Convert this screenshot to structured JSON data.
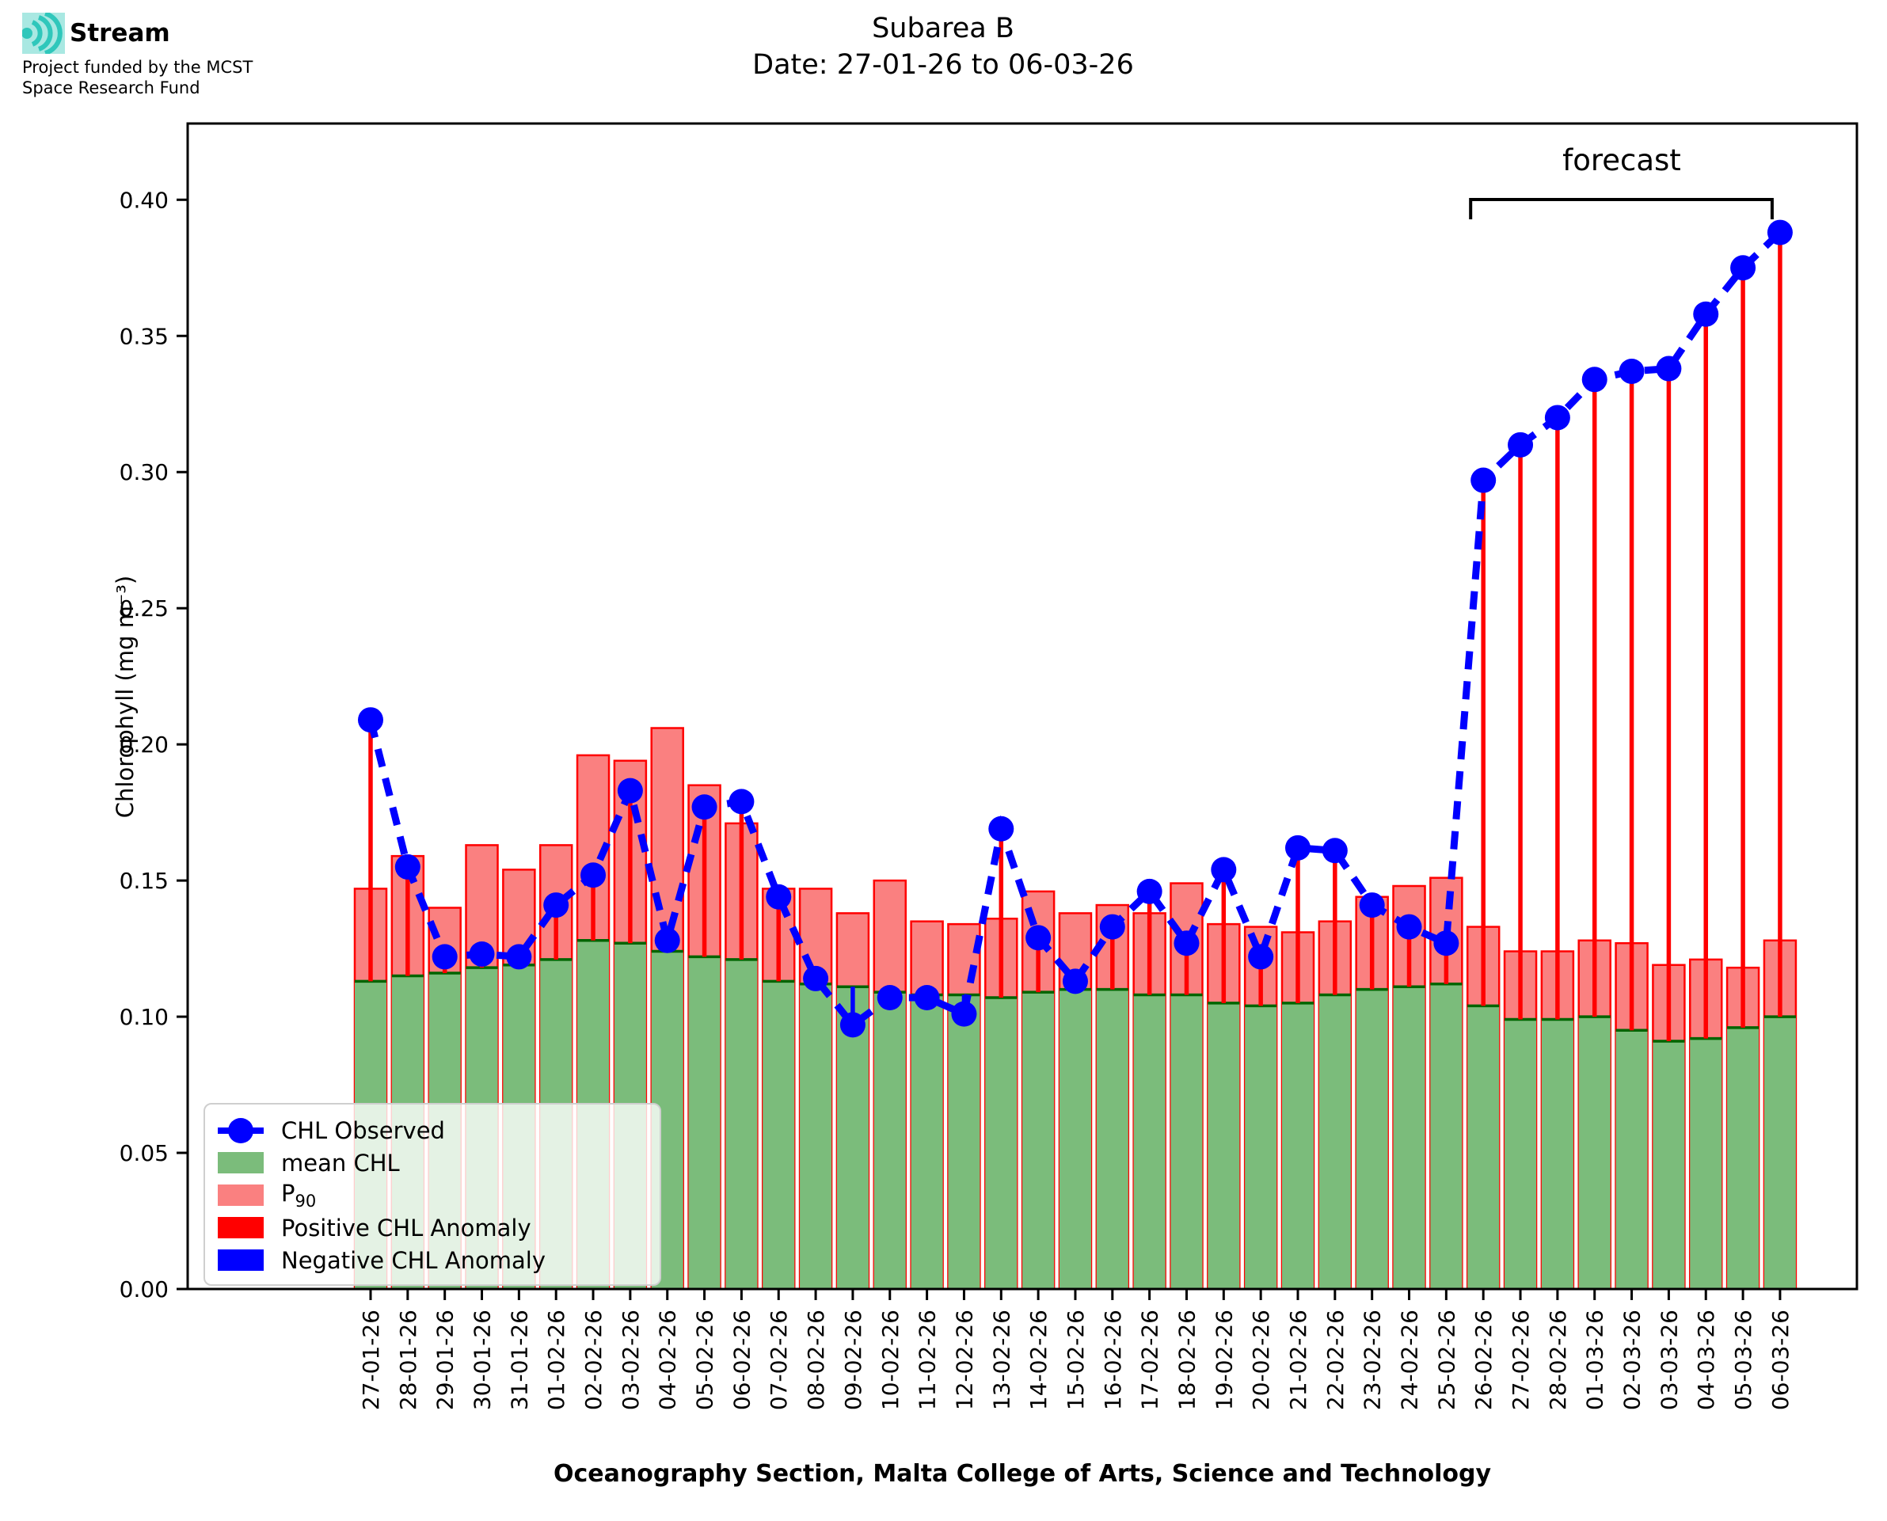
{
  "logo": {
    "name": "Stream",
    "funding_line1": "Project funded by the MCST",
    "funding_line2": "Space Research Fund",
    "icon": "stream-waves-icon",
    "icon_color": "#2fc7bb",
    "icon_bg": "#a9e8e2"
  },
  "title": {
    "line1": "Subarea B",
    "line2": "Date: 27-01-26 to 06-03-26"
  },
  "forecast_label": "forecast",
  "axes": {
    "y_label": "Chlorophyll (mg m⁻³)",
    "x_label": "Oceanography Section, Malta College of Arts, Science and Technology",
    "y_ticks": [
      "0.00",
      "0.05",
      "0.10",
      "0.15",
      "0.20",
      "0.25",
      "0.30",
      "0.35",
      "0.40"
    ],
    "ylim": [
      0,
      0.428
    ],
    "grid": false
  },
  "legend": {
    "position": "lower-left",
    "items": [
      {
        "label": "CHL Observed",
        "type": "line-marker",
        "color": "#0000ff"
      },
      {
        "label": "mean CHL",
        "type": "patch",
        "color": "#7bbc7b"
      },
      {
        "label": "P",
        "sub": "90",
        "type": "patch",
        "color": "#fa8080"
      },
      {
        "label": "Positive CHL Anomaly",
        "type": "patch",
        "color": "#ff0000"
      },
      {
        "label": "Negative CHL Anomaly",
        "type": "patch",
        "color": "#0000ff"
      }
    ]
  },
  "chart_data": {
    "type": "bar+line",
    "title": "Subarea B  Date: 27-01-26 to 06-03-26",
    "xlabel": "Oceanography Section, Malta College of Arts, Science and Technology",
    "ylabel": "Chlorophyll (mg m⁻³)",
    "ylim": [
      0,
      0.428
    ],
    "legend_position": "lower left",
    "grid": false,
    "forecast_start_category": "26-02-26",
    "forecast_start_index": 30,
    "colors": {
      "observed_line": "#0000ff",
      "mean_fill": "#7bbc7b",
      "mean_edge": "#006400",
      "p90_fill": "#fa8080",
      "p90_edge": "#ff0000",
      "positive_anomaly": "#ff0000",
      "negative_anomaly": "#0000ff"
    },
    "categories": [
      "27-01-26",
      "28-01-26",
      "29-01-26",
      "30-01-26",
      "31-01-26",
      "01-02-26",
      "02-02-26",
      "03-02-26",
      "04-02-26",
      "05-02-26",
      "06-02-26",
      "07-02-26",
      "08-02-26",
      "09-02-26",
      "10-02-26",
      "11-02-26",
      "12-02-26",
      "13-02-26",
      "14-02-26",
      "15-02-26",
      "16-02-26",
      "17-02-26",
      "18-02-26",
      "19-02-26",
      "20-02-26",
      "21-02-26",
      "22-02-26",
      "23-02-26",
      "24-02-26",
      "25-02-26",
      "26-02-26",
      "27-02-26",
      "28-02-26",
      "01-03-26",
      "02-03-26",
      "03-03-26",
      "04-03-26",
      "05-03-26",
      "06-03-26"
    ],
    "series": [
      {
        "name": "CHL Observed",
        "values": [
          0.209,
          0.155,
          0.122,
          0.123,
          0.122,
          0.141,
          0.152,
          0.183,
          0.128,
          0.177,
          0.179,
          0.144,
          0.114,
          0.097,
          0.107,
          0.107,
          0.101,
          0.169,
          0.129,
          0.113,
          0.133,
          0.146,
          0.127,
          0.154,
          0.122,
          0.162,
          0.161,
          0.141,
          0.133,
          0.127,
          0.297,
          0.31,
          0.32,
          0.334,
          0.337,
          0.338,
          0.358,
          0.375,
          0.388
        ]
      },
      {
        "name": "mean CHL",
        "values": [
          0.113,
          0.115,
          0.116,
          0.118,
          0.119,
          0.121,
          0.128,
          0.127,
          0.124,
          0.122,
          0.121,
          0.113,
          0.112,
          0.111,
          0.109,
          0.108,
          0.108,
          0.107,
          0.109,
          0.11,
          0.11,
          0.108,
          0.108,
          0.105,
          0.104,
          0.105,
          0.108,
          0.11,
          0.111,
          0.112,
          0.104,
          0.099,
          0.099,
          0.1,
          0.095,
          0.091,
          0.092,
          0.096,
          0.1
        ]
      },
      {
        "name": "P90",
        "values": [
          0.147,
          0.159,
          0.14,
          0.163,
          0.154,
          0.163,
          0.196,
          0.194,
          0.206,
          0.185,
          0.171,
          0.147,
          0.147,
          0.138,
          0.15,
          0.135,
          0.134,
          0.136,
          0.146,
          0.138,
          0.141,
          0.138,
          0.149,
          0.134,
          0.133,
          0.131,
          0.135,
          0.144,
          0.148,
          0.151,
          0.133,
          0.124,
          0.124,
          0.128,
          0.127,
          0.119,
          0.121,
          0.118,
          0.128
        ]
      }
    ]
  }
}
